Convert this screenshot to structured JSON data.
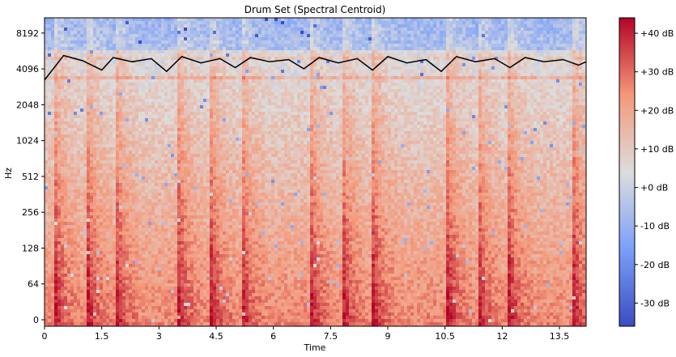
{
  "chart_data": {
    "type": "heatmap",
    "title": "Drum Set (Spectral Centroid)",
    "xlabel": "Time",
    "ylabel": "Hz",
    "x_ticks": [
      "0",
      "1.5",
      "3",
      "4.5",
      "6",
      "7.5",
      "9",
      "10.5",
      "12",
      "13.5"
    ],
    "x_tick_values": [
      0,
      1.5,
      3,
      4.5,
      6,
      7.5,
      9,
      10.5,
      12,
      13.5
    ],
    "xlim": [
      0,
      14.2
    ],
    "y_scale": "log2 (with 0 at bottom)",
    "y_ticks": [
      "0",
      "64",
      "128",
      "256",
      "512",
      "1024",
      "2048",
      "4096",
      "8192"
    ],
    "y_tick_values": [
      0,
      64,
      128,
      256,
      512,
      1024,
      2048,
      4096,
      8192
    ],
    "colorbar": {
      "label_ticks": [
        "+40 dB",
        "+30 dB",
        "+20 dB",
        "+10 dB",
        "+0 dB",
        "-10 dB",
        "-20 dB",
        "-30 dB"
      ],
      "tick_values": [
        40,
        30,
        20,
        10,
        0,
        -10,
        -20,
        -30
      ],
      "range": [
        -36,
        44
      ],
      "colormap": "coolwarm",
      "low_color": "#3b4cc0",
      "mid_color": "#dddddd",
      "high_color": "#b40426"
    },
    "series": [
      {
        "type": "line",
        "color": "#000000",
        "x": [
          0,
          0.5,
          1.0,
          1.5,
          1.8,
          2.3,
          2.8,
          3.2,
          3.6,
          4.1,
          4.6,
          5.0,
          5.4,
          5.9,
          6.4,
          6.8,
          7.2,
          7.7,
          8.2,
          8.6,
          9.0,
          9.5,
          10.0,
          10.4,
          10.8,
          11.3,
          11.8,
          12.2,
          12.6,
          13.1,
          13.6,
          14.0,
          14.2
        ],
        "values": [
          3300,
          5300,
          4800,
          4000,
          5100,
          4700,
          5000,
          3900,
          5200,
          4600,
          5000,
          4200,
          5100,
          4700,
          4900,
          4100,
          5100,
          4600,
          5000,
          4000,
          5200,
          4600,
          4900,
          3900,
          5200,
          4700,
          5000,
          4200,
          5100,
          4700,
          4900,
          4400,
          4700
        ]
      }
    ],
    "heatmap_description_bands": {
      "onset_times": [
        0.25,
        1.1,
        1.85,
        3.5,
        4.35,
        5.15,
        6.95,
        7.8,
        8.6,
        10.55,
        11.35,
        12.15,
        13.85
      ]
    }
  }
}
